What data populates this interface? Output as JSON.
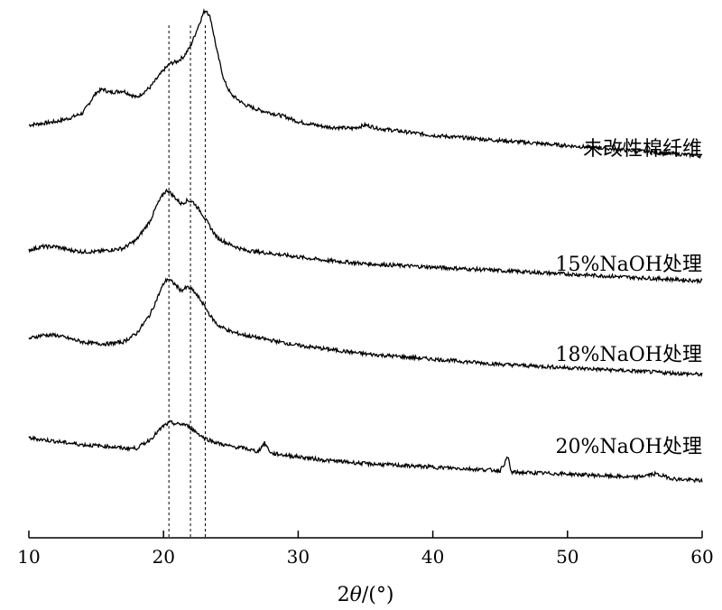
{
  "chart_data": {
    "type": "line",
    "title": "",
    "xlabel_prefix": "2",
    "xlabel_var": "θ",
    "xlabel_suffix": "/(°)",
    "ylabel": "",
    "xlim": [
      10,
      60
    ],
    "x_ticks": [
      10,
      20,
      30,
      40,
      50,
      60
    ],
    "y_axis_visible": false,
    "grid": false,
    "legend": "inline-right",
    "line_color": "#000000",
    "vertical_reference_lines": [
      20.4,
      22.0,
      23.1
    ],
    "series": [
      {
        "name": "未改性棉纤维",
        "points": [
          [
            10,
            26
          ],
          [
            11,
            27
          ],
          [
            12,
            28
          ],
          [
            13,
            30
          ],
          [
            14,
            33
          ],
          [
            15,
            45
          ],
          [
            15.5,
            47
          ],
          [
            16,
            45
          ],
          [
            17,
            46
          ],
          [
            17.5,
            44
          ],
          [
            18,
            42
          ],
          [
            19,
            48
          ],
          [
            20,
            58
          ],
          [
            20.5,
            62
          ],
          [
            21,
            63
          ],
          [
            21.5,
            66
          ],
          [
            22,
            72
          ],
          [
            22.5,
            82
          ],
          [
            23,
            92
          ],
          [
            23.2,
            93
          ],
          [
            23.5,
            88
          ],
          [
            24,
            68
          ],
          [
            24.5,
            52
          ],
          [
            25,
            44
          ],
          [
            26,
            38
          ],
          [
            27,
            35
          ],
          [
            28,
            33
          ],
          [
            29,
            31
          ],
          [
            30,
            28
          ],
          [
            32,
            25
          ],
          [
            34,
            24
          ],
          [
            35,
            26
          ],
          [
            36,
            24
          ],
          [
            38,
            22
          ],
          [
            40,
            20
          ],
          [
            45,
            17
          ],
          [
            50,
            14
          ],
          [
            55,
            11
          ],
          [
            60,
            8
          ]
        ]
      },
      {
        "name": "15%NaOH处理",
        "points": [
          [
            10,
            11
          ],
          [
            11,
            13
          ],
          [
            12,
            13
          ],
          [
            13,
            11
          ],
          [
            14,
            10
          ],
          [
            15,
            10
          ],
          [
            16,
            11
          ],
          [
            17,
            12
          ],
          [
            18,
            17
          ],
          [
            19,
            28
          ],
          [
            19.5,
            37
          ],
          [
            20,
            44
          ],
          [
            20.3,
            46
          ],
          [
            20.8,
            42
          ],
          [
            21.3,
            38
          ],
          [
            21.8,
            40
          ],
          [
            22.2,
            39
          ],
          [
            22.8,
            33
          ],
          [
            23.5,
            24
          ],
          [
            24,
            18
          ],
          [
            25,
            14
          ],
          [
            26,
            11
          ],
          [
            28,
            9
          ],
          [
            30,
            7
          ],
          [
            32,
            5
          ],
          [
            35,
            3
          ],
          [
            40,
            1
          ],
          [
            45,
            -1
          ],
          [
            50,
            -3
          ],
          [
            55,
            -5
          ],
          [
            60,
            -7
          ]
        ]
      },
      {
        "name": "18%NaOH处理",
        "points": [
          [
            10,
            12
          ],
          [
            11,
            14
          ],
          [
            12,
            14
          ],
          [
            13,
            12
          ],
          [
            14,
            10
          ],
          [
            15,
            9
          ],
          [
            16,
            9
          ],
          [
            17,
            10
          ],
          [
            18,
            15
          ],
          [
            19,
            26
          ],
          [
            19.5,
            35
          ],
          [
            20,
            44
          ],
          [
            20.3,
            47
          ],
          [
            20.8,
            44
          ],
          [
            21.3,
            40
          ],
          [
            21.8,
            42
          ],
          [
            22.2,
            40
          ],
          [
            22.8,
            34
          ],
          [
            23.5,
            25
          ],
          [
            24,
            20
          ],
          [
            25,
            16
          ],
          [
            26,
            14
          ],
          [
            28,
            11
          ],
          [
            30,
            8
          ],
          [
            32,
            6
          ],
          [
            35,
            3
          ],
          [
            40,
            0
          ],
          [
            45,
            -3
          ],
          [
            50,
            -5
          ],
          [
            55,
            -7
          ],
          [
            60,
            -9
          ]
        ]
      },
      {
        "name": "20%NaOH处理",
        "points": [
          [
            10,
            13
          ],
          [
            12,
            11
          ],
          [
            14,
            9
          ],
          [
            16,
            8
          ],
          [
            17,
            7
          ],
          [
            18,
            7
          ],
          [
            19,
            12
          ],
          [
            20,
            20
          ],
          [
            20.5,
            22
          ],
          [
            21,
            21
          ],
          [
            21.5,
            21
          ],
          [
            22,
            19
          ],
          [
            22.5,
            16
          ],
          [
            23,
            13
          ],
          [
            24,
            10
          ],
          [
            25,
            8
          ],
          [
            26,
            7
          ],
          [
            27,
            5
          ],
          [
            27.5,
            10
          ],
          [
            28,
            4
          ],
          [
            29,
            3
          ],
          [
            30,
            2
          ],
          [
            32,
            0
          ],
          [
            35,
            -2
          ],
          [
            40,
            -4
          ],
          [
            45,
            -6
          ],
          [
            45.6,
            2
          ],
          [
            45.8,
            -7
          ],
          [
            50,
            -8
          ],
          [
            55,
            -10
          ],
          [
            56.5,
            -8
          ],
          [
            58,
            -11
          ],
          [
            60,
            -12
          ]
        ]
      }
    ]
  }
}
